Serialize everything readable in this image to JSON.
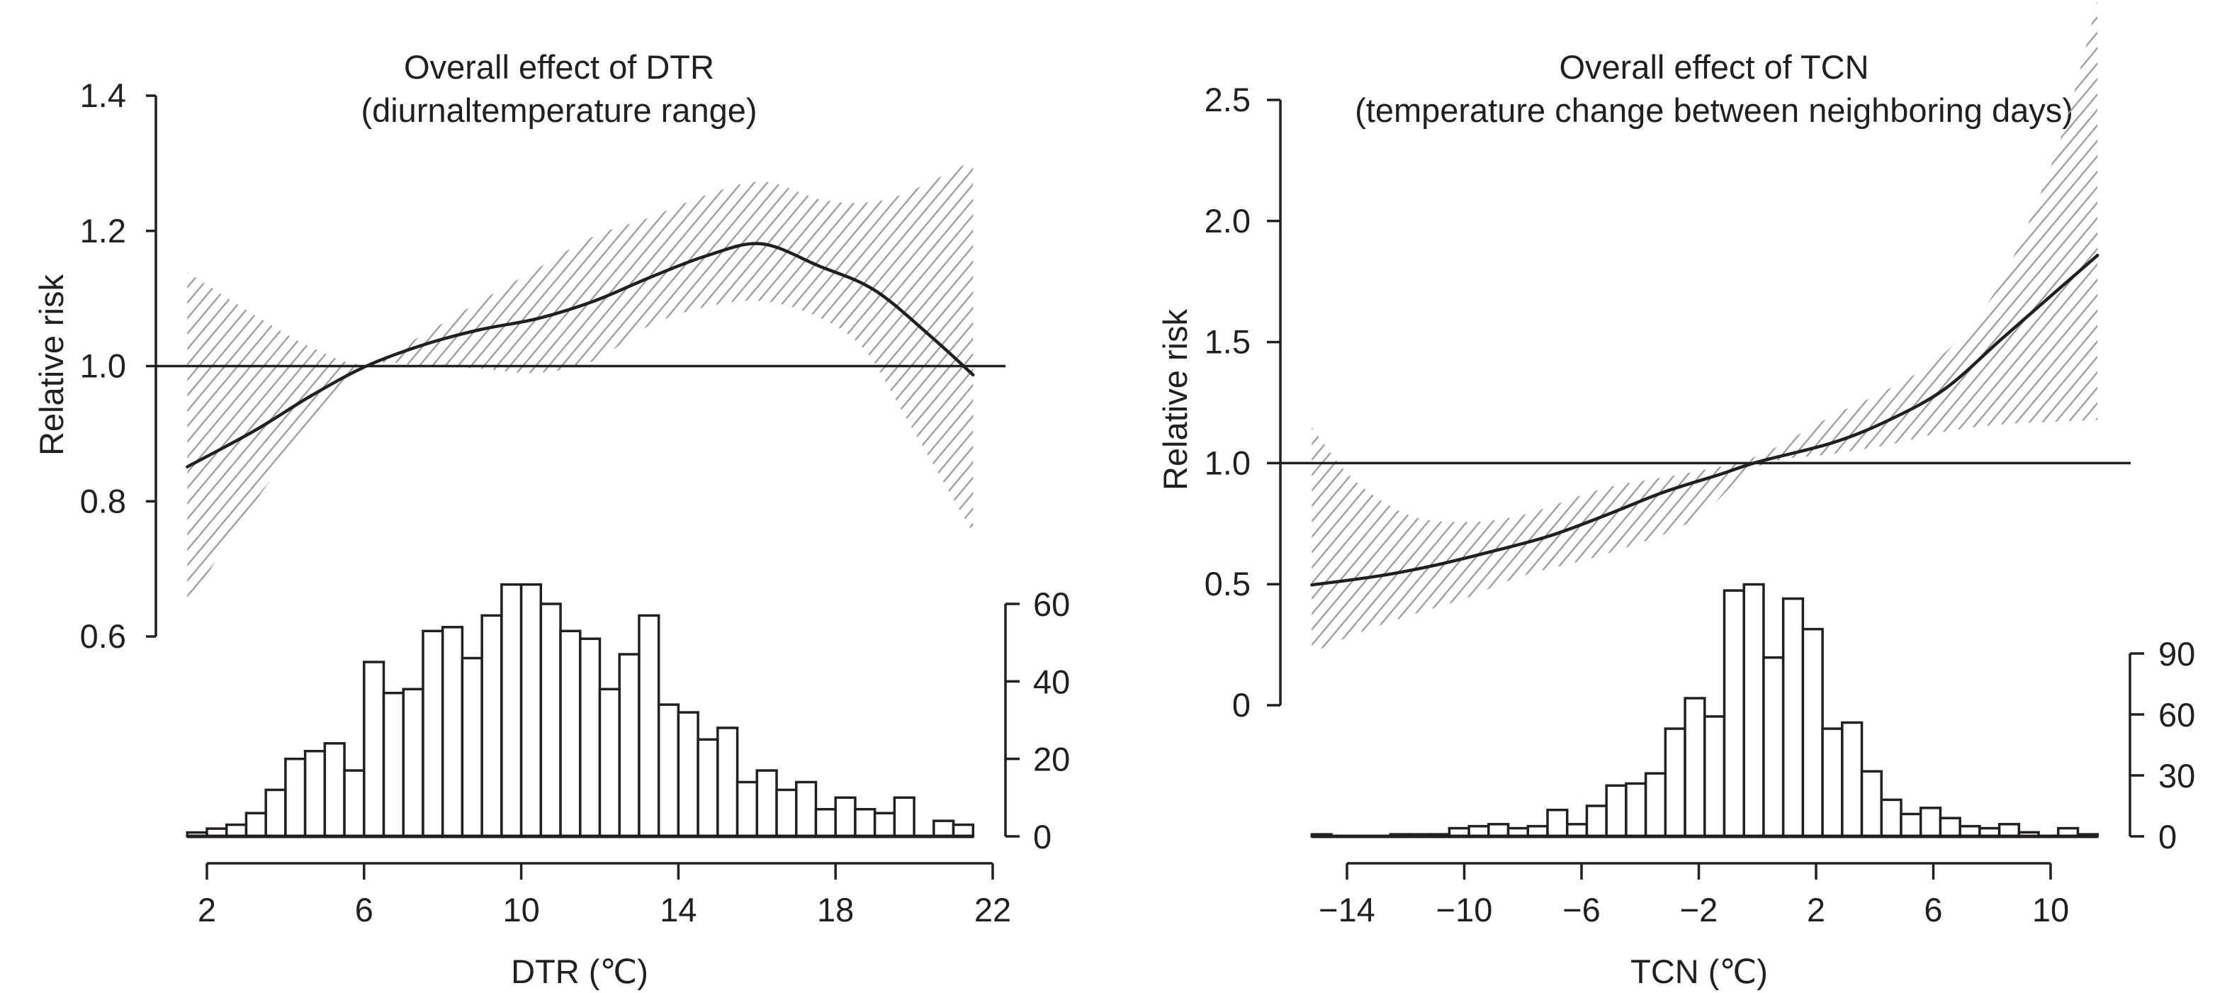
{
  "chart_data": [
    {
      "id": "dtr",
      "type": "line",
      "title": [
        "Overall effect of DTR",
        "(diurnaltemperature range)"
      ],
      "xlabel": "DTR (℃)",
      "ylabel": "Relative risk",
      "xticks": [
        2,
        6,
        10,
        14,
        18,
        22
      ],
      "xtick_labels": [
        "2",
        "6",
        "10",
        "14",
        "18",
        "22"
      ],
      "xlim": [
        2,
        22
      ],
      "ylim": [
        0.6,
        1.4
      ],
      "yticks": [
        0.6,
        0.8,
        1.0,
        1.2,
        1.4
      ],
      "ytick_labels": [
        "0.6",
        "0.8",
        "1.0",
        "1.2",
        "1.4"
      ],
      "reference_line": 1.0,
      "grid": false,
      "series": [
        {
          "name": "Relative risk",
          "x": [
            1.5,
            3.2,
            4.65,
            6.06,
            7.54,
            8.96,
            10.4,
            11.85,
            13.27,
            14.71,
            16.1,
            17.58,
            19.0,
            20.5,
            21.5
          ],
          "y": [
            0.851,
            0.904,
            0.956,
            1.0,
            1.032,
            1.054,
            1.07,
            1.096,
            1.131,
            1.163,
            1.181,
            1.148,
            1.112,
            1.04,
            0.987
          ]
        }
      ],
      "ci": {
        "name": "95% CI",
        "x": [
          1.5,
          3.2,
          4.65,
          6.06,
          7.54,
          8.96,
          10.4,
          11.85,
          13.27,
          14.71,
          16.16,
          17.58,
          18.74,
          19.75,
          21.5
        ],
        "upper": [
          1.139,
          1.076,
          1.028,
          1.003,
          1.048,
          1.096,
          1.144,
          1.192,
          1.22,
          1.253,
          1.273,
          1.247,
          1.242,
          1.255,
          1.304
        ],
        "lower": [
          0.646,
          0.797,
          0.908,
          0.998,
          1.0,
          0.996,
          0.99,
          1.008,
          1.06,
          1.088,
          1.096,
          1.072,
          1.024,
          0.928,
          0.753
        ]
      },
      "histogram": {
        "bin_start": 1.5,
        "bin_width": 0.5,
        "counts": [
          1,
          2,
          3,
          6,
          12,
          20,
          22,
          24,
          17,
          45,
          37,
          38,
          53,
          54,
          46,
          57,
          65,
          65,
          60,
          53,
          51,
          38,
          47,
          57,
          34,
          32,
          25,
          28,
          14,
          17,
          12,
          14,
          7,
          10,
          7,
          6,
          10,
          0,
          4,
          3
        ],
        "ylim": [
          0,
          60
        ],
        "yticks": [
          0,
          20,
          40,
          60
        ],
        "ytick_labels": [
          "0",
          "20",
          "40",
          "60"
        ]
      }
    },
    {
      "id": "tcn",
      "type": "line",
      "title": [
        "Overall effect of TCN",
        "(temperature change between neighboring days)"
      ],
      "xlabel": "TCN (℃)",
      "ylabel": "Relative risk",
      "xticks": [
        -14,
        -10,
        -6,
        -2,
        2,
        6,
        10
      ],
      "xtick_labels": [
        "−14",
        "−10",
        "−6",
        "−2",
        "2",
        "6",
        "10"
      ],
      "xlim": [
        -14,
        10
      ],
      "ylim": [
        0,
        2.5
      ],
      "yticks": [
        0,
        0.5,
        1.0,
        1.5,
        2.0,
        2.5
      ],
      "ytick_labels": [
        "0",
        "0.5",
        "1.0",
        "1.5",
        "2.0",
        "2.5"
      ],
      "reference_line": 1.0,
      "grid": false,
      "series": [
        {
          "name": "Relative risk",
          "x": [
            -15.2,
            -12.86,
            -10.93,
            -9.0,
            -7.07,
            -5.15,
            -3.22,
            -1.29,
            0.04,
            2.56,
            4.49,
            6.4,
            8.33,
            10.27,
            11.6
          ],
          "y": [
            0.497,
            0.535,
            0.58,
            0.637,
            0.7,
            0.786,
            0.879,
            0.953,
            1.006,
            1.084,
            1.178,
            1.307,
            1.513,
            1.718,
            1.858
          ]
        }
      ],
      "ci": {
        "name": "95% CI",
        "x": [
          -15.2,
          -13.8,
          -11.9,
          -10.0,
          -8.0,
          -5.15,
          -2.25,
          0.0,
          2.56,
          4.49,
          6.4,
          8.33,
          10.27,
          11.6
        ],
        "upper": [
          1.149,
          0.935,
          0.786,
          0.757,
          0.786,
          0.898,
          0.962,
          1.03,
          1.196,
          1.307,
          1.457,
          1.755,
          2.316,
          2.91
        ],
        "lower": [
          0.216,
          0.29,
          0.37,
          0.44,
          0.535,
          0.626,
          0.76,
          0.985,
          1.038,
          1.076,
          1.13,
          1.16,
          1.172,
          1.178
        ]
      },
      "histogram": {
        "bin_start": -15.2,
        "bin_width": 0.67,
        "counts": [
          1,
          0,
          0,
          0,
          1,
          1,
          1,
          4,
          5,
          6,
          4,
          5,
          13,
          6,
          15,
          25,
          26,
          31,
          53,
          68,
          59,
          121,
          124,
          88,
          117,
          102,
          53,
          56,
          32,
          18,
          11,
          14,
          9,
          5,
          4,
          6,
          2,
          0,
          4,
          1
        ],
        "ylim": [
          0,
          90
        ],
        "yticks": [
          0,
          30,
          60,
          90
        ],
        "ytick_labels": [
          "0",
          "30",
          "60",
          "90"
        ]
      }
    }
  ],
  "colors": {
    "ink": "#231f20",
    "ci_hatch": "#9a9a9a",
    "bar_fill": "#ffffff",
    "background": "#ffffff"
  }
}
